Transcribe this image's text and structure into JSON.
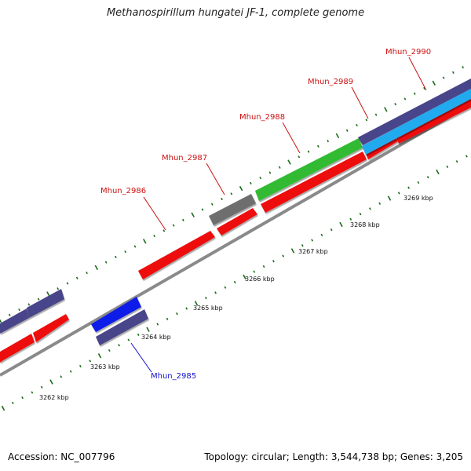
{
  "title": "Methanospirillum hungatei JF-1, complete genome",
  "footer": {
    "accession": "Accession: NC_007796",
    "topology": "Topology: circular; Length: 3,544,738 bp; Genes: 3,205"
  },
  "colors": {
    "backbone": "#8a8a8a",
    "tick": "#1a6b1a",
    "cds_red": "#ee1111",
    "green": "#33bb33",
    "gray_gene": "#6e6e6e",
    "purple": "#4a448a",
    "blue": "#0d1ae8",
    "cyan": "#22aaee",
    "label_red": "#cc1111",
    "label_blue": "#1111cc"
  },
  "kbp_labels": [
    "3262 kbp",
    "3263 kbp",
    "3264 kbp",
    "3265 kbp",
    "3266 kbp",
    "3267 kbp",
    "3268 kbp",
    "3269 kbp"
  ],
  "gene_labels": {
    "g2985": "Mhun_2985",
    "g2986": "Mhun_2986",
    "g2987": "Mhun_2987",
    "g2988": "Mhun_2988",
    "g2989": "Mhun_2989",
    "g2990": "Mhun_2990"
  }
}
